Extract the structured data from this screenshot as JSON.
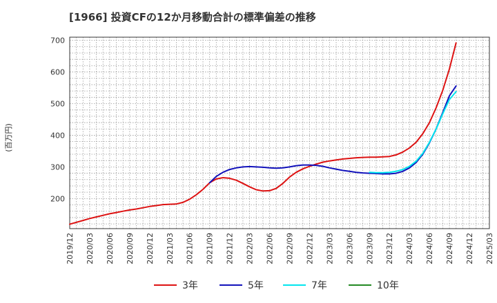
{
  "chart_data": {
    "type": "line",
    "title": "[1966]  投資CFの12か月移動合計の標準偏差の推移",
    "ylabel": "(百万円)",
    "ylim": [
      105,
      710
    ],
    "yticks": [
      200,
      300,
      400,
      500,
      600,
      700
    ],
    "x_start": "2019/12",
    "x_end": "2025/03",
    "xticks": [
      "2019/12",
      "2020/03",
      "2020/06",
      "2020/09",
      "2020/12",
      "2021/03",
      "2021/06",
      "2021/09",
      "2021/12",
      "2022/03",
      "2022/06",
      "2022/09",
      "2022/12",
      "2023/03",
      "2023/06",
      "2023/09",
      "2023/12",
      "2024/03",
      "2024/06",
      "2024/09",
      "2024/12",
      "2025/03"
    ],
    "grid": true,
    "legend_position": "bottom",
    "series": [
      {
        "name": "3年",
        "color": "#dd1111",
        "points": [
          [
            "2019/12",
            119
          ],
          [
            "2020/01",
            125
          ],
          [
            "2020/02",
            131
          ],
          [
            "2020/03",
            137
          ],
          [
            "2020/04",
            142
          ],
          [
            "2020/05",
            147
          ],
          [
            "2020/06",
            152
          ],
          [
            "2020/07",
            156
          ],
          [
            "2020/08",
            160
          ],
          [
            "2020/09",
            164
          ],
          [
            "2020/10",
            167
          ],
          [
            "2020/11",
            171
          ],
          [
            "2020/12",
            175
          ],
          [
            "2021/01",
            178
          ],
          [
            "2021/02",
            181
          ],
          [
            "2021/03",
            182
          ],
          [
            "2021/04",
            183
          ],
          [
            "2021/05",
            188
          ],
          [
            "2021/06",
            198
          ],
          [
            "2021/07",
            212
          ],
          [
            "2021/08",
            229
          ],
          [
            "2021/09",
            250
          ],
          [
            "2021/10",
            262
          ],
          [
            "2021/11",
            266
          ],
          [
            "2021/12",
            264
          ],
          [
            "2022/01",
            258
          ],
          [
            "2022/02",
            248
          ],
          [
            "2022/03",
            237
          ],
          [
            "2022/04",
            228
          ],
          [
            "2022/05",
            224
          ],
          [
            "2022/06",
            225
          ],
          [
            "2022/07",
            232
          ],
          [
            "2022/08",
            248
          ],
          [
            "2022/09",
            268
          ],
          [
            "2022/10",
            283
          ],
          [
            "2022/11",
            294
          ],
          [
            "2022/12",
            302
          ],
          [
            "2023/01",
            309
          ],
          [
            "2023/02",
            315
          ],
          [
            "2023/03",
            319
          ],
          [
            "2023/04",
            322
          ],
          [
            "2023/05",
            325
          ],
          [
            "2023/06",
            327
          ],
          [
            "2023/07",
            329
          ],
          [
            "2023/08",
            330
          ],
          [
            "2023/09",
            331
          ],
          [
            "2023/10",
            331
          ],
          [
            "2023/11",
            332
          ],
          [
            "2023/12",
            333
          ],
          [
            "2024/01",
            338
          ],
          [
            "2024/02",
            347
          ],
          [
            "2024/03",
            360
          ],
          [
            "2024/04",
            378
          ],
          [
            "2024/05",
            405
          ],
          [
            "2024/06",
            440
          ],
          [
            "2024/07",
            487
          ],
          [
            "2024/08",
            542
          ],
          [
            "2024/09",
            610
          ],
          [
            "2024/10",
            692
          ]
        ]
      },
      {
        "name": "5年",
        "color": "#1111bb",
        "points": [
          [
            "2021/09",
            250
          ],
          [
            "2021/10",
            270
          ],
          [
            "2021/11",
            283
          ],
          [
            "2021/12",
            292
          ],
          [
            "2022/01",
            297
          ],
          [
            "2022/02",
            300
          ],
          [
            "2022/03",
            301
          ],
          [
            "2022/04",
            300
          ],
          [
            "2022/05",
            299
          ],
          [
            "2022/06",
            297
          ],
          [
            "2022/07",
            296
          ],
          [
            "2022/08",
            297
          ],
          [
            "2022/09",
            300
          ],
          [
            "2022/10",
            304
          ],
          [
            "2022/11",
            306
          ],
          [
            "2022/12",
            306
          ],
          [
            "2023/01",
            305
          ],
          [
            "2023/02",
            302
          ],
          [
            "2023/03",
            297
          ],
          [
            "2023/04",
            293
          ],
          [
            "2023/05",
            289
          ],
          [
            "2023/06",
            286
          ],
          [
            "2023/07",
            283
          ],
          [
            "2023/08",
            281
          ],
          [
            "2023/09",
            280
          ],
          [
            "2023/10",
            279
          ],
          [
            "2023/11",
            278
          ],
          [
            "2023/12",
            278
          ],
          [
            "2024/01",
            280
          ],
          [
            "2024/02",
            286
          ],
          [
            "2024/03",
            297
          ],
          [
            "2024/04",
            314
          ],
          [
            "2024/05",
            340
          ],
          [
            "2024/06",
            376
          ],
          [
            "2024/07",
            420
          ],
          [
            "2024/08",
            472
          ],
          [
            "2024/09",
            525
          ],
          [
            "2024/10",
            556
          ]
        ]
      },
      {
        "name": "7年",
        "color": "#00e5ee",
        "points": [
          [
            "2023/09",
            283
          ],
          [
            "2023/10",
            282
          ],
          [
            "2023/11",
            282
          ],
          [
            "2023/12",
            283
          ],
          [
            "2024/01",
            286
          ],
          [
            "2024/02",
            292
          ],
          [
            "2024/03",
            302
          ],
          [
            "2024/04",
            318
          ],
          [
            "2024/05",
            343
          ],
          [
            "2024/06",
            378
          ],
          [
            "2024/07",
            420
          ],
          [
            "2024/08",
            468
          ],
          [
            "2024/09",
            513
          ],
          [
            "2024/10",
            538
          ]
        ]
      },
      {
        "name": "10年",
        "color": "#228822",
        "points": []
      }
    ]
  }
}
